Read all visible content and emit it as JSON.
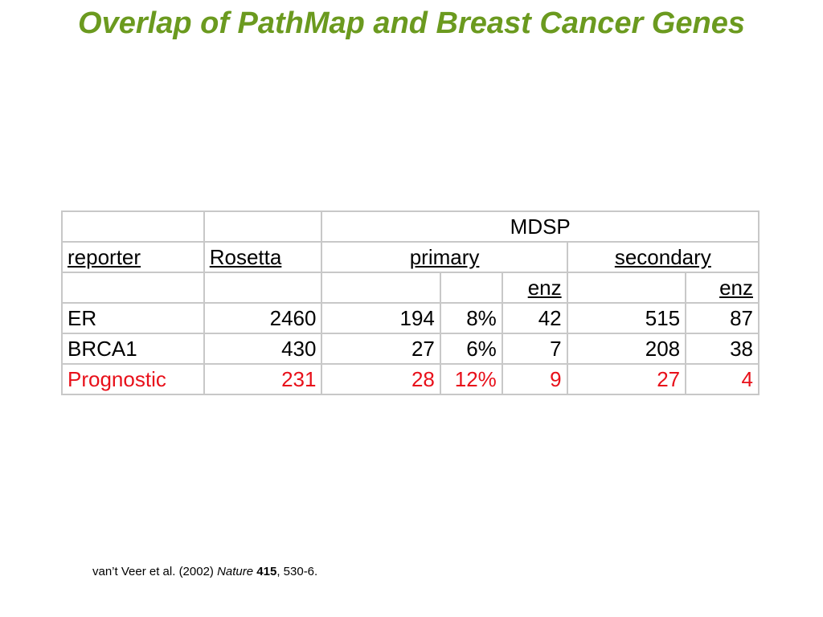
{
  "title": "Overlap of PathMap and Breast Cancer Genes",
  "table": {
    "group_header": "MDSP",
    "headers": {
      "reporter": "reporter",
      "rosetta": "Rosetta",
      "primary": "primary",
      "secondary": "secondary",
      "enz_primary": "enz",
      "enz_secondary": "enz"
    },
    "rows": [
      {
        "reporter": "ER",
        "rosetta": "2460",
        "primary_count": "194",
        "primary_pct": "8%",
        "primary_enz": "42",
        "secondary_count": "515",
        "secondary_enz": "87"
      },
      {
        "reporter": "BRCA1",
        "rosetta": "430",
        "primary_count": "27",
        "primary_pct": "6%",
        "primary_enz": "7",
        "secondary_count": "208",
        "secondary_enz": "38"
      },
      {
        "reporter": "Prognostic",
        "rosetta": "231",
        "primary_count": "28",
        "primary_pct": "12%",
        "primary_enz": "9",
        "secondary_count": "27",
        "secondary_enz": "4"
      }
    ],
    "highlight_color": "#e8101a"
  },
  "citation": {
    "authors": "van’t Veer et al. (2002) ",
    "journal": "Nature",
    "volume": "415",
    "pages": ", 530-6."
  },
  "colors": {
    "title": "#6b9a1f",
    "grid": "#c8c8c8"
  }
}
